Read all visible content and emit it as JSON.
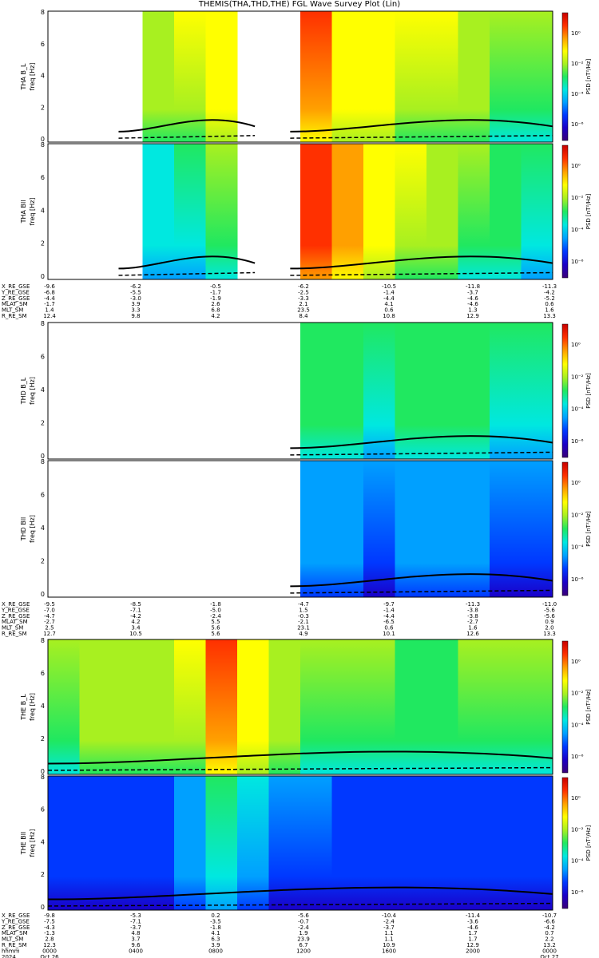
{
  "title": "THEMIS(THA,THD,THE) FGL Wave Survey Plot (Lin)",
  "colors": {
    "line": "#000000",
    "colormap": [
      "#3a0078",
      "#1a00c8",
      "#0038ff",
      "#00a0ff",
      "#00e8e0",
      "#20e860",
      "#a8f020",
      "#ffff00",
      "#ffa000",
      "#ff3000",
      "#c80000"
    ]
  },
  "colorbar_ticks": [
    "10⁰",
    "10⁻²",
    "10⁻⁴",
    "10⁻⁶"
  ],
  "colorbar_label": "PSD [nT²/Hz]",
  "panels": [
    {
      "probe": "THA",
      "comp": "B_L",
      "ylabel": "THA B_L",
      "yunit": "freq [Hz]",
      "yticks": [
        "8",
        "6",
        "4",
        "2",
        "0"
      ],
      "data_ranges": [
        [
          0.14,
          0.41
        ],
        [
          0.48,
          1.0
        ]
      ],
      "heat": [
        0.48,
        0.55,
        0.6,
        0.62,
        0.65,
        0.72,
        0.8,
        0.86,
        0.88,
        0.72,
        0.7,
        0.68,
        0.66,
        0.62,
        0.58,
        0.55
      ]
    },
    {
      "probe": "THA",
      "comp": "Bll",
      "ylabel": "THA Bll",
      "yunit": "freq [Hz]",
      "yticks": [
        "8",
        "6",
        "4",
        "2",
        "0"
      ],
      "data_ranges": [
        [
          0.14,
          0.41
        ],
        [
          0.48,
          1.0
        ]
      ],
      "heat": [
        0.3,
        0.35,
        0.4,
        0.42,
        0.45,
        0.55,
        0.7,
        0.86,
        0.92,
        0.8,
        0.7,
        0.65,
        0.6,
        0.57,
        0.52,
        0.48
      ]
    },
    {
      "probe": "THD",
      "comp": "B_L",
      "ylabel": "THD B_L",
      "yunit": "freq [Hz]",
      "yticks": [
        "8",
        "6",
        "4",
        "2",
        "0"
      ],
      "data_ranges": [
        [
          0.48,
          1.0
        ]
      ],
      "heat": [
        0.45,
        0.48,
        0.5,
        0.5,
        0.52,
        0.55,
        0.5,
        0.48,
        0.52,
        0.5,
        0.48,
        0.5,
        0.52,
        0.5,
        0.48,
        0.46
      ]
    },
    {
      "probe": "THD",
      "comp": "Bll",
      "ylabel": "THD Bll",
      "yunit": "freq [Hz]",
      "yticks": [
        "8",
        "6",
        "4",
        "2",
        "0"
      ],
      "data_ranges": [
        [
          0.48,
          1.0
        ]
      ],
      "heat": [
        0.28,
        0.3,
        0.3,
        0.32,
        0.32,
        0.35,
        0.3,
        0.28,
        0.3,
        0.3,
        0.28,
        0.3,
        0.32,
        0.3,
        0.28,
        0.27
      ]
    },
    {
      "probe": "THE",
      "comp": "B_L",
      "ylabel": "THE B_L",
      "yunit": "freq [Hz]",
      "yticks": [
        "8",
        "6",
        "4",
        "2",
        "0"
      ],
      "data_ranges": [
        [
          0.0,
          1.0
        ]
      ],
      "heat": [
        0.58,
        0.6,
        0.6,
        0.62,
        0.66,
        0.86,
        0.74,
        0.62,
        0.58,
        0.56,
        0.55,
        0.54,
        0.54,
        0.55,
        0.55,
        0.56
      ]
    },
    {
      "probe": "THE",
      "comp": "Bll",
      "ylabel": "THE Bll",
      "yunit": "freq [Hz]",
      "yticks": [
        "8",
        "6",
        "4",
        "2",
        "0"
      ],
      "data_ranges": [
        [
          0.0,
          1.0
        ]
      ],
      "heat": [
        0.22,
        0.22,
        0.23,
        0.24,
        0.3,
        0.45,
        0.36,
        0.28,
        0.26,
        0.24,
        0.23,
        0.22,
        0.22,
        0.23,
        0.23,
        0.24
      ]
    }
  ],
  "orbit_blocks": [
    {
      "rows": [
        "X_RE_GSE",
        "Y_RE_GSE",
        "Z_RE_GSE",
        "MLAT_SM",
        "MLT_SM",
        "R_RE_SM"
      ],
      "cols": [
        [
          "-9.6",
          "-6.8",
          "-4.4",
          "-1.7",
          "1.4",
          "12.4"
        ],
        [
          "-6.2",
          "-5.5",
          "-3.0",
          "3.9",
          "3.3",
          "9.8"
        ],
        [
          "-0.5",
          "-1.7",
          "-1.9",
          "2.6",
          "6.8",
          "4.2"
        ],
        [
          "-6.2",
          "-2.5",
          "-3.3",
          "2.1",
          "23.5",
          "8.4"
        ],
        [
          "-10.5",
          "-1.4",
          "-4.4",
          "4.1",
          "0.6",
          "10.8"
        ],
        [
          "-11.8",
          "-3.7",
          "-4.6",
          "-4.6",
          "1.3",
          "12.9"
        ],
        [
          "-11.3",
          "-4.2",
          "-5.2",
          "0.6",
          "1.6",
          "13.3"
        ]
      ]
    },
    {
      "rows": [
        "X_RE_GSE",
        "Y_RE_GSE",
        "Z_RE_GSE",
        "MLAT_SM",
        "MLT_SM",
        "R_RE_SM"
      ],
      "cols": [
        [
          "-9.5",
          "-7.0",
          "-4.7",
          "-2.7",
          "2.5",
          "12.7"
        ],
        [
          "-8.5",
          "-7.1",
          "-4.2",
          "4.2",
          "3.4",
          "10.5"
        ],
        [
          "-1.8",
          "-5.0",
          "-2.4",
          "5.5",
          "5.6",
          "5.6"
        ],
        [
          "-4.7",
          "1.5",
          "-0.3",
          "-2.1",
          "23.1",
          "4.9"
        ],
        [
          "-9.7",
          "-1.4",
          "-4.4",
          "-6.5",
          "0.6",
          "10.1"
        ],
        [
          "-11.3",
          "-3.8",
          "-3.8",
          "-2.7",
          "1.6",
          "12.6"
        ],
        [
          "-11.0",
          "-5.6",
          "-5.6",
          "0.9",
          "2.0",
          "13.3"
        ]
      ]
    },
    {
      "rows": [
        "X_RE_GSE",
        "Y_RE_GSE",
        "Z_RE_GSE",
        "MLAT_SM",
        "MLT_SM",
        "R_RE_SM",
        "hhmm",
        "2024"
      ],
      "cols": [
        [
          "-9.8",
          "-7.5",
          "-4.3",
          "-1.3",
          "2.8",
          "12.3",
          "0000",
          "Oct 26"
        ],
        [
          "-5.3",
          "-7.1",
          "-3.7",
          "4.8",
          "3.7",
          "9.6",
          "0400",
          ""
        ],
        [
          "0.2",
          "-3.5",
          "-1.8",
          "4.1",
          "6.3",
          "3.9",
          "0800",
          ""
        ],
        [
          "-5.6",
          "-0.7",
          "-2.4",
          "1.9",
          "23.9",
          "6.7",
          "1200",
          ""
        ],
        [
          "-10.4",
          "-2.4",
          "-3.7",
          "1.1",
          "1.1",
          "10.9",
          "1600",
          ""
        ],
        [
          "-11.4",
          "-3.6",
          "-4.6",
          "1.7",
          "1.7",
          "12.9",
          "2000",
          ""
        ],
        [
          "-10.7",
          "-6.6",
          "-4.2",
          "0.7",
          "2.2",
          "13.2",
          "0000",
          "Oct 27"
        ]
      ]
    }
  ]
}
